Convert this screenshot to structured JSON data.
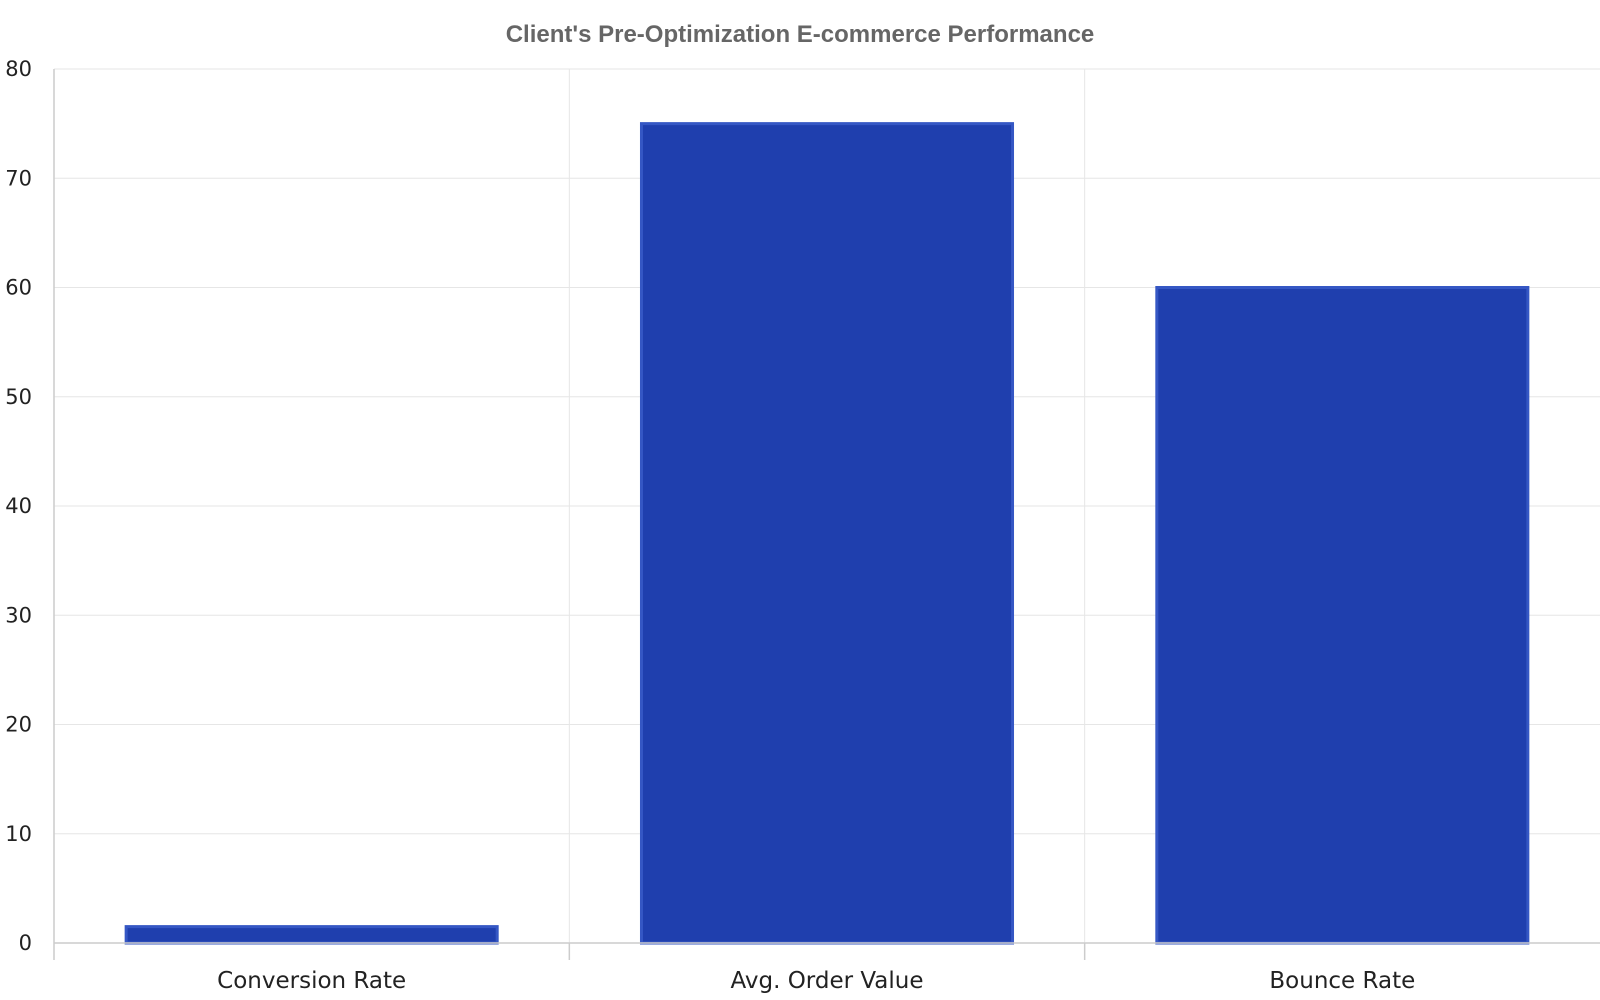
{
  "chart_data": {
    "type": "bar",
    "title": "Client's Pre-Optimization E-commerce Performance",
    "xlabel": "",
    "ylabel": "",
    "categories": [
      "Conversion Rate",
      "Avg. Order Value",
      "Bounce Rate"
    ],
    "values": [
      1.5,
      75,
      60
    ],
    "ylim": [
      0,
      80
    ],
    "yticks": [
      0,
      10,
      20,
      30,
      40,
      50,
      60,
      70,
      80
    ],
    "grid": true,
    "legend": "none",
    "colors": {
      "bar": "#1f3fae",
      "bar_border": "#3557c4",
      "grid": "#e6e6e6",
      "title": "#666666"
    }
  }
}
